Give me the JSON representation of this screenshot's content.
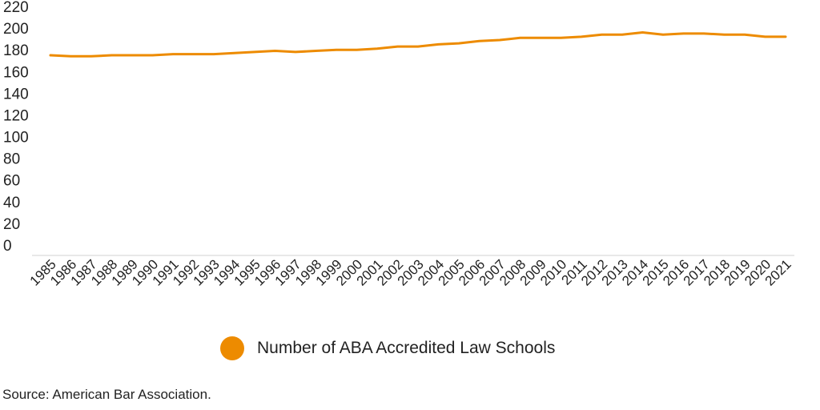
{
  "chart_data": {
    "type": "line",
    "title": "",
    "xlabel": "",
    "ylabel": "",
    "ylim": [
      0,
      220
    ],
    "y_ticks": [
      "0",
      "20",
      "40",
      "60",
      "80",
      "100",
      "120",
      "140",
      "160",
      "180",
      "200",
      "220"
    ],
    "grid": false,
    "legend_position": "bottom",
    "categories": [
      "1985",
      "1986",
      "1987",
      "1988",
      "1989",
      "1990",
      "1991",
      "1992",
      "1993",
      "1994",
      "1995",
      "1996",
      "1997",
      "1998",
      "1999",
      "2000",
      "2001",
      "2002",
      "2003",
      "2004",
      "2005",
      "2006",
      "2007",
      "2008",
      "2009",
      "2010",
      "2011",
      "2012",
      "2013",
      "2014",
      "2015",
      "2016",
      "2017",
      "2018",
      "2019",
      "2020",
      "2021"
    ],
    "series": [
      {
        "name": "Number of ABA Accredited Law Schools",
        "color": "#ED8B00",
        "values": [
          175,
          174,
          174,
          175,
          175,
          175,
          176,
          176,
          176,
          177,
          178,
          179,
          178,
          179,
          180,
          180,
          181,
          183,
          183,
          185,
          186,
          188,
          189,
          191,
          191,
          191,
          192,
          194,
          194,
          196,
          194,
          195,
          195,
          194,
          194,
          192,
          192
        ]
      }
    ]
  },
  "legend": {
    "label": "Number of ABA Accredited Law Schools",
    "color": "#ED8B00"
  },
  "source": "Source: American Bar Association."
}
